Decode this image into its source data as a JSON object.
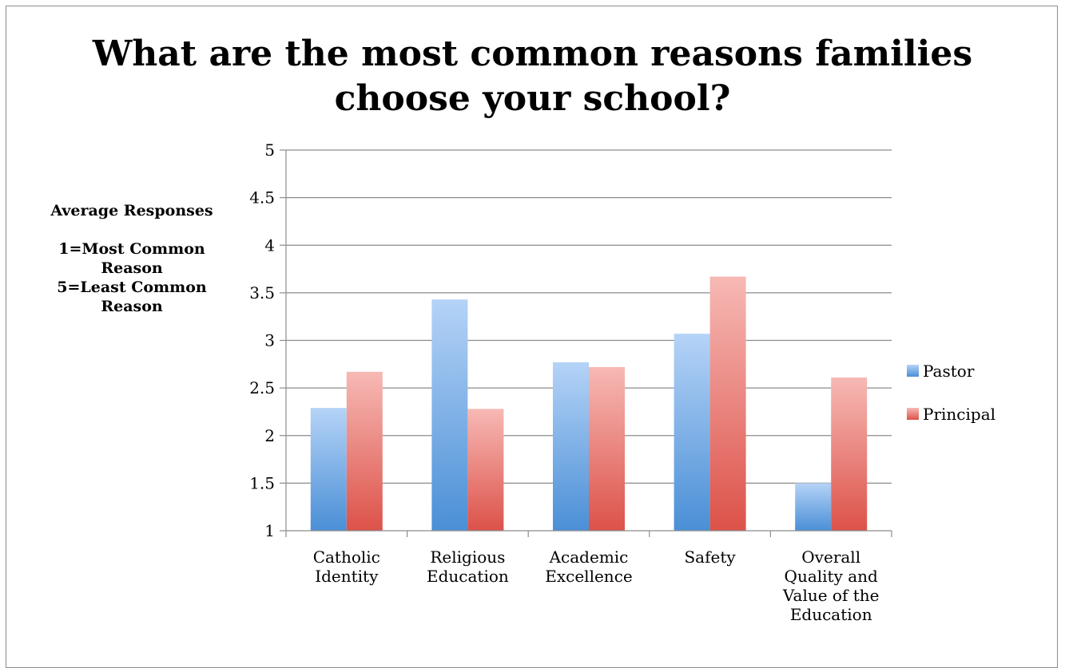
{
  "chart_data": {
    "type": "bar",
    "title": [
      "What are the most common reasons families",
      "choose your school?"
    ],
    "ylabel_lines": [
      "Average Responses",
      "",
      "1=Most Common",
      "Reason",
      "5=Least Common",
      "Reason"
    ],
    "categories": [
      [
        "Catholic",
        "Identity"
      ],
      [
        "Religious",
        "Education"
      ],
      [
        "Academic",
        "Excellence"
      ],
      [
        "Safety"
      ],
      [
        "Overall",
        "Quality and",
        "Value of the",
        "Education"
      ]
    ],
    "series": [
      {
        "name": "Pastor",
        "values": [
          2.29,
          3.43,
          2.77,
          3.07,
          1.5
        ],
        "color_top": "#b5d3f7",
        "color_bottom": "#4a8fd6"
      },
      {
        "name": "Principal",
        "values": [
          2.67,
          2.28,
          2.72,
          3.67,
          2.61
        ],
        "color_top": "#f7b9b5",
        "color_bottom": "#dc5249"
      }
    ],
    "ylim": [
      1,
      5
    ],
    "yticks": [
      "1",
      "1.5",
      "2",
      "2.5",
      "3",
      "3.5",
      "4",
      "4.5",
      "5"
    ],
    "grid": true,
    "legend_position": "right"
  }
}
